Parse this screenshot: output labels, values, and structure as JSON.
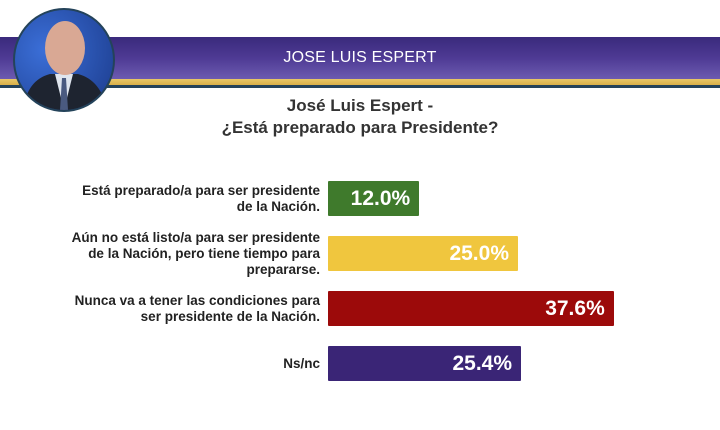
{
  "header": {
    "name": "JOSE LUIS ESPERT"
  },
  "chart_data": {
    "type": "bar",
    "orientation": "horizontal",
    "title": "José Luis Espert -",
    "subtitle": "¿Está preparado para Presidente?",
    "categories": [
      [
        "Está preparado/a para ser presidente",
        "de la Nación."
      ],
      [
        "Aún no está listo/a para ser presidente",
        "de la Nación, pero tiene tiempo para",
        "prepararse."
      ],
      [
        "Nunca va a tener las condiciones para",
        "ser presidente de la Nación."
      ],
      [
        "Ns/nc"
      ]
    ],
    "values": [
      12.0,
      25.0,
      37.6,
      25.4
    ],
    "value_labels": [
      "12.0%",
      "25.0%",
      "37.6%",
      "25.4%"
    ],
    "colors": [
      "#3f7a2c",
      "#f0c63e",
      "#9c0a0a",
      "#3a2576"
    ],
    "unit": "%"
  }
}
